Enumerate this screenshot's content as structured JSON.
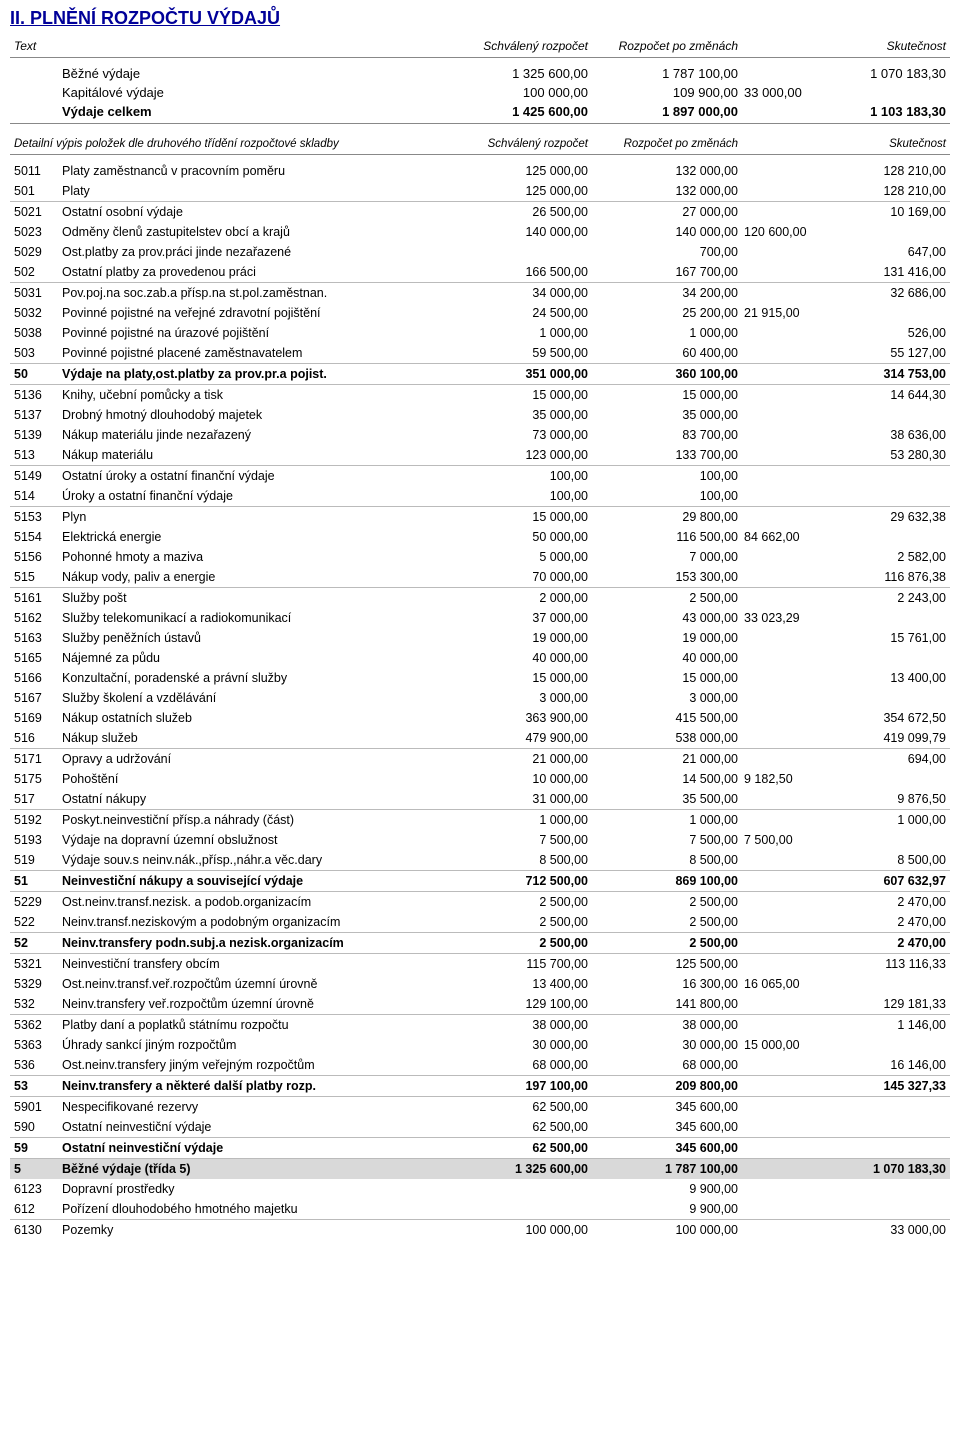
{
  "title": "II. PLNĚNÍ ROZPOČTU VÝDAJŮ",
  "header": {
    "col_text": "Text",
    "col_approved": "Schválený rozpočet",
    "col_changed": "Rozpočet po změnách",
    "col_actual": "Skutečnost"
  },
  "summary": [
    {
      "label": "Běžné výdaje",
      "approved": "1 325 600,00",
      "changed": "1 787 100,00",
      "actual": "1 070 183,30",
      "bold": false
    },
    {
      "label": "Kapitálové výdaje",
      "approved": "100 000,00",
      "changed": "109 900,00",
      "split": "33 000,00",
      "bold": false
    },
    {
      "label": "Výdaje celkem",
      "approved": "1 425 600,00",
      "changed": "1 897 000,00",
      "actual": "1 103 183,30",
      "bold": true
    }
  ],
  "subheader": {
    "col_text": "Detailní výpis položek dle druhového třídění rozpočtové skladby",
    "col_approved": "Schválený rozpočet",
    "col_changed": "Rozpočet po změnách",
    "col_actual": "Skutečnost"
  },
  "rows": [
    {
      "code": "5011",
      "text": "Platy zaměstnanců v pracovním poměru",
      "a": "125 000,00",
      "b": "132 000,00",
      "c": "128 210,00"
    },
    {
      "code": "501",
      "text": "Platy",
      "a": "125 000,00",
      "b": "132 000,00",
      "c": "128 210,00",
      "line": true
    },
    {
      "code": "5021",
      "text": "Ostatní osobní výdaje",
      "a": "26 500,00",
      "b": "27 000,00",
      "c": "10 169,00"
    },
    {
      "code": "5023",
      "text": "Odměny členů zastupitelstev obcí a krajů",
      "a": "140 000,00",
      "b": "140 000,00",
      "s": "120 600,00"
    },
    {
      "code": "5029",
      "text": "Ost.platby za prov.práci jinde nezařazené",
      "a": "",
      "b": "700,00",
      "c": "647,00"
    },
    {
      "code": "502",
      "text": "Ostatní platby za provedenou práci",
      "a": "166 500,00",
      "b": "167 700,00",
      "c": "131 416,00",
      "line": true
    },
    {
      "code": "5031",
      "text": "Pov.poj.na soc.zab.a přísp.na st.pol.zaměstnan.",
      "a": "34 000,00",
      "b": "34 200,00",
      "c": "32 686,00"
    },
    {
      "code": "5032",
      "text": "Povinné pojistné na veřejné zdravotní pojištění",
      "a": "24 500,00",
      "b": "25 200,00",
      "s": "21 915,00"
    },
    {
      "code": "5038",
      "text": "Povinné pojistné na úrazové pojištění",
      "a": "1 000,00",
      "b": "1 000,00",
      "c": "526,00"
    },
    {
      "code": "503",
      "text": "Povinné pojistné placené zaměstnavatelem",
      "a": "59 500,00",
      "b": "60 400,00",
      "c": "55 127,00",
      "line": true
    },
    {
      "code": "50",
      "text": "Výdaje na platy,ost.platby za prov.pr.a pojist.",
      "a": "351 000,00",
      "b": "360 100,00",
      "c": "314 753,00",
      "bold": true,
      "line": true
    },
    {
      "code": "5136",
      "text": "Knihy, učební pomůcky a tisk",
      "a": "15 000,00",
      "b": "15 000,00",
      "c": "14 644,30"
    },
    {
      "code": "5137",
      "text": "Drobný hmotný dlouhodobý majetek",
      "a": "35 000,00",
      "b": "35 000,00"
    },
    {
      "code": "5139",
      "text": "Nákup materiálu jinde nezařazený",
      "a": "73 000,00",
      "b": "83 700,00",
      "c": "38 636,00"
    },
    {
      "code": "513",
      "text": "Nákup materiálu",
      "a": "123 000,00",
      "b": "133 700,00",
      "c": "53 280,30",
      "line": true
    },
    {
      "code": "5149",
      "text": "Ostatní úroky a ostatní finanční výdaje",
      "a": "100,00",
      "b": "100,00"
    },
    {
      "code": "514",
      "text": "Úroky a ostatní finanční výdaje",
      "a": "100,00",
      "b": "100,00",
      "line": true
    },
    {
      "code": "5153",
      "text": "Plyn",
      "a": "15 000,00",
      "b": "29 800,00",
      "c": "29 632,38"
    },
    {
      "code": "5154",
      "text": "Elektrická energie",
      "a": "50 000,00",
      "b": "116 500,00",
      "s": "84 662,00"
    },
    {
      "code": "5156",
      "text": "Pohonné hmoty a maziva",
      "a": "5 000,00",
      "b": "7 000,00",
      "c": "2 582,00"
    },
    {
      "code": "515",
      "text": "Nákup vody, paliv a energie",
      "a": "70 000,00",
      "b": "153 300,00",
      "c": "116 876,38",
      "line": true
    },
    {
      "code": "5161",
      "text": "Služby pošt",
      "a": "2 000,00",
      "b": "2 500,00",
      "c": "2 243,00"
    },
    {
      "code": "5162",
      "text": "Služby telekomunikací a radiokomunikací",
      "a": "37 000,00",
      "b": "43 000,00",
      "s": "33 023,29"
    },
    {
      "code": "5163",
      "text": "Služby peněžních ústavů",
      "a": "19 000,00",
      "b": "19 000,00",
      "c": "15 761,00"
    },
    {
      "code": "5165",
      "text": "Nájemné za půdu",
      "a": "40 000,00",
      "b": "40 000,00"
    },
    {
      "code": "5166",
      "text": "Konzultační, poradenské a právní služby",
      "a": "15 000,00",
      "b": "15 000,00",
      "c": "13 400,00"
    },
    {
      "code": "5167",
      "text": "Služby školení a vzdělávání",
      "a": "3 000,00",
      "b": "3 000,00"
    },
    {
      "code": "5169",
      "text": "Nákup ostatních služeb",
      "a": "363 900,00",
      "b": "415 500,00",
      "c": "354 672,50"
    },
    {
      "code": "516",
      "text": "Nákup služeb",
      "a": "479 900,00",
      "b": "538 000,00",
      "c": "419 099,79",
      "line": true
    },
    {
      "code": "5171",
      "text": "Opravy a udržování",
      "a": "21 000,00",
      "b": "21 000,00",
      "c": "694,00"
    },
    {
      "code": "5175",
      "text": "Pohoštění",
      "a": "10 000,00",
      "b": "14 500,00",
      "s": "9 182,50"
    },
    {
      "code": "517",
      "text": "Ostatní nákupy",
      "a": "31 000,00",
      "b": "35 500,00",
      "c": "9 876,50",
      "line": true
    },
    {
      "code": "5192",
      "text": "Poskyt.neinvestiční přísp.a náhrady (část)",
      "a": "1 000,00",
      "b": "1 000,00",
      "c": "1 000,00"
    },
    {
      "code": "5193",
      "text": "Výdaje na dopravní územní obslužnost",
      "a": "7 500,00",
      "b": "7 500,00",
      "s": "7 500,00"
    },
    {
      "code": "519",
      "text": "Výdaje souv.s neinv.nák.,přísp.,náhr.a věc.dary",
      "a": "8 500,00",
      "b": "8 500,00",
      "c": "8 500,00",
      "line": true
    },
    {
      "code": "51",
      "text": "Neinvestiční nákupy a související výdaje",
      "a": "712 500,00",
      "b": "869 100,00",
      "c": "607 632,97",
      "bold": true,
      "line": true
    },
    {
      "code": "5229",
      "text": "Ost.neinv.transf.nezisk. a podob.organizacím",
      "a": "2 500,00",
      "b": "2 500,00",
      "c": "2 470,00"
    },
    {
      "code": "522",
      "text": "Neinv.transf.neziskovým a podobným organizacím",
      "a": "2 500,00",
      "b": "2 500,00",
      "c": "2 470,00",
      "line": true
    },
    {
      "code": "52",
      "text": "Neinv.transfery podn.subj.a nezisk.organizacím",
      "a": "2 500,00",
      "b": "2 500,00",
      "c": "2 470,00",
      "bold": true,
      "line": true
    },
    {
      "code": "5321",
      "text": "Neinvestiční transfery obcím",
      "a": "115 700,00",
      "b": "125 500,00",
      "c": "113 116,33"
    },
    {
      "code": "5329",
      "text": "Ost.neinv.transf.veř.rozpočtům územní úrovně",
      "a": "13 400,00",
      "b": "16 300,00",
      "s": "16 065,00"
    },
    {
      "code": "532",
      "text": "Neinv.transfery veř.rozpočtům územní úrovně",
      "a": "129 100,00",
      "b": "141 800,00",
      "c": "129 181,33",
      "line": true
    },
    {
      "code": "5362",
      "text": "Platby daní a poplatků státnímu rozpočtu",
      "a": "38 000,00",
      "b": "38 000,00",
      "c": "1 146,00"
    },
    {
      "code": "5363",
      "text": "Úhrady sankcí jiným rozpočtům",
      "a": "30 000,00",
      "b": "30 000,00",
      "s": "15 000,00"
    },
    {
      "code": "536",
      "text": "Ost.neinv.transfery jiným veřejným rozpočtům",
      "a": "68 000,00",
      "b": "68 000,00",
      "c": "16 146,00",
      "line": true
    },
    {
      "code": "53",
      "text": "Neinv.transfery a některé další platby rozp.",
      "a": "197 100,00",
      "b": "209 800,00",
      "c": "145 327,33",
      "bold": true,
      "line": true
    },
    {
      "code": "5901",
      "text": "Nespecifikované rezervy",
      "a": "62 500,00",
      "b": "345 600,00"
    },
    {
      "code": "590",
      "text": "Ostatní neinvestiční výdaje",
      "a": "62 500,00",
      "b": "345 600,00",
      "line": true
    },
    {
      "code": "59",
      "text": "Ostatní neinvestiční výdaje",
      "a": "62 500,00",
      "b": "345 600,00",
      "bold": true,
      "line": true
    },
    {
      "code": "5",
      "text": "Běžné výdaje (třída 5)",
      "a": "1 325 600,00",
      "b": "1 787 100,00",
      "c": "1 070 183,30",
      "section": true
    },
    {
      "code": "6123",
      "text": "Dopravní prostředky",
      "a": "",
      "b": "9 900,00"
    },
    {
      "code": "612",
      "text": "Pořízení dlouhodobého hmotného majetku",
      "a": "",
      "b": "9 900,00",
      "line": true
    },
    {
      "code": "6130",
      "text": "Pozemky",
      "a": "100 000,00",
      "b": "100 000,00",
      "c": "33 000,00"
    }
  ]
}
